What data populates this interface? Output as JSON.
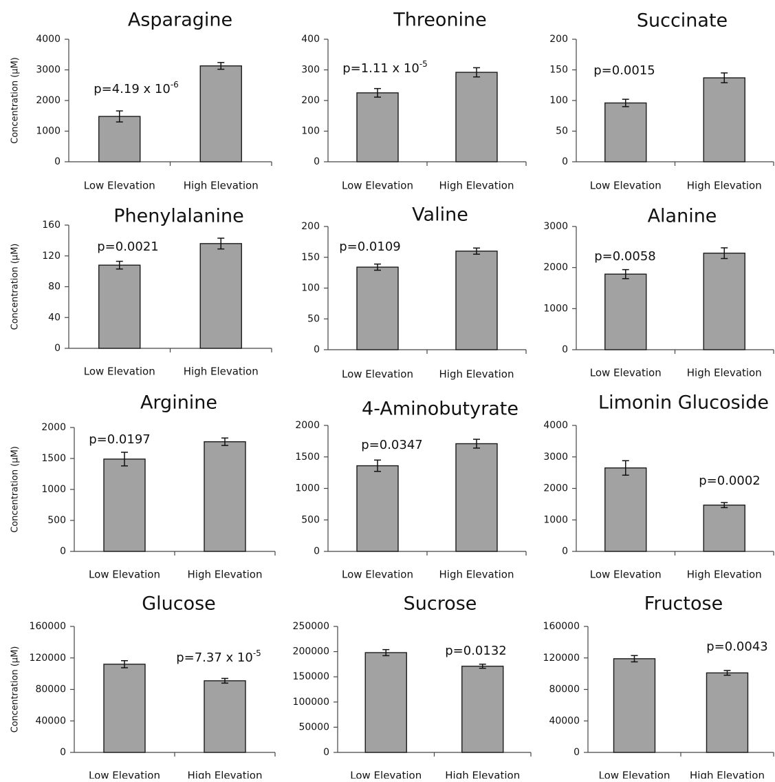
{
  "chart_data": [
    {
      "type": "bar",
      "title": "Asparagine",
      "ylabel": "Concentration (µM)",
      "categories": [
        "Low Elevation",
        "High Elevation"
      ],
      "values": [
        1480,
        3130
      ],
      "errors": [
        180,
        110
      ],
      "ylim": [
        0,
        4000
      ],
      "yticks": [
        "0",
        "1000",
        "2000",
        "3000",
        "4000"
      ],
      "pvalue": {
        "text": "p=4.19 x 10",
        "sup": "-6"
      }
    },
    {
      "type": "bar",
      "title": "Threonine",
      "ylabel": "",
      "categories": [
        "Low Elevation",
        "High Elevation"
      ],
      "values": [
        225,
        292
      ],
      "errors": [
        14,
        15
      ],
      "ylim": [
        0,
        400
      ],
      "yticks": [
        "0",
        "100",
        "200",
        "300",
        "400"
      ],
      "pvalue": {
        "text": "p=1.11 x 10",
        "sup": "-5"
      }
    },
    {
      "type": "bar",
      "title": "Succinate",
      "ylabel": "",
      "categories": [
        "Low Elevation",
        "High Elevation"
      ],
      "values": [
        96,
        137
      ],
      "errors": [
        6,
        8
      ],
      "ylim": [
        0,
        200
      ],
      "yticks": [
        "0",
        "50",
        "100",
        "150",
        "200"
      ],
      "pvalue": {
        "text": "p=0.0015",
        "sup": ""
      }
    },
    {
      "type": "bar",
      "title": "Phenylalanine",
      "ylabel": "Concentration (µM)",
      "categories": [
        "Low Elevation",
        "High Elevation"
      ],
      "values": [
        108,
        136
      ],
      "errors": [
        5,
        7
      ],
      "ylim": [
        0,
        160
      ],
      "yticks": [
        "0",
        "40",
        "80",
        "120",
        "160"
      ],
      "pvalue": {
        "text": "p=0.0021",
        "sup": ""
      }
    },
    {
      "type": "bar",
      "title": "Valine",
      "ylabel": "",
      "categories": [
        "Low Elevation",
        "High Elevation"
      ],
      "values": [
        134,
        160
      ],
      "errors": [
        5,
        5
      ],
      "ylim": [
        0,
        200
      ],
      "yticks": [
        "0",
        "50",
        "100",
        "150",
        "200"
      ],
      "pvalue": {
        "text": "p=0.0109",
        "sup": ""
      }
    },
    {
      "type": "bar",
      "title": "Alanine",
      "ylabel": "",
      "categories": [
        "Low Elevation",
        "High Elevation"
      ],
      "values": [
        1840,
        2350
      ],
      "errors": [
        110,
        130
      ],
      "ylim": [
        0,
        3000
      ],
      "yticks": [
        "0",
        "1000",
        "2000",
        "3000"
      ],
      "pvalue": {
        "text": "p=0.0058",
        "sup": ""
      }
    },
    {
      "type": "bar",
      "title": "Arginine",
      "ylabel": "Concentration (µM)",
      "categories": [
        "Low Elevation",
        "High Elevation"
      ],
      "values": [
        1490,
        1770
      ],
      "errors": [
        110,
        60
      ],
      "ylim": [
        0,
        2000
      ],
      "yticks": [
        "0",
        "500",
        "1000",
        "1500",
        "2000"
      ],
      "pvalue": {
        "text": "p=0.0197",
        "sup": ""
      }
    },
    {
      "type": "bar",
      "title": "4-Aminobutyrate",
      "ylabel": "",
      "categories": [
        "Low Elevation",
        "High Elevation"
      ],
      "values": [
        1360,
        1710
      ],
      "errors": [
        90,
        70
      ],
      "ylim": [
        0,
        2000
      ],
      "yticks": [
        "0",
        "500",
        "1000",
        "1500",
        "2000"
      ],
      "pvalue": {
        "text": "p=0.0347",
        "sup": ""
      }
    },
    {
      "type": "bar",
      "title": "Limonin Glucoside",
      "ylabel": "",
      "categories": [
        "Low Elevation",
        "High Elevation"
      ],
      "values": [
        2650,
        1470
      ],
      "errors": [
        230,
        80
      ],
      "ylim": [
        0,
        4000
      ],
      "yticks": [
        "0",
        "1000",
        "2000",
        "3000",
        "4000"
      ],
      "pvalue": {
        "text": "p=0.0002",
        "sup": ""
      }
    },
    {
      "type": "bar",
      "title": "Glucose",
      "ylabel": "Concentration (µM)",
      "categories": [
        "Low Elevation",
        "High Elevation"
      ],
      "values": [
        112000,
        91000
      ],
      "errors": [
        4500,
        3000
      ],
      "ylim": [
        0,
        160000
      ],
      "yticks": [
        "0",
        "40000",
        "80000",
        "120000",
        "160000"
      ],
      "pvalue": {
        "text": "p=7.37 x 10",
        "sup": "-5"
      }
    },
    {
      "type": "bar",
      "title": "Sucrose",
      "ylabel": "",
      "categories": [
        "Low Elevation",
        "High Elevation"
      ],
      "values": [
        198000,
        171000
      ],
      "errors": [
        6000,
        4000
      ],
      "ylim": [
        0,
        250000
      ],
      "yticks": [
        "0",
        "50000",
        "100000",
        "150000",
        "200000",
        "250000"
      ],
      "pvalue": {
        "text": "p=0.0132",
        "sup": ""
      }
    },
    {
      "type": "bar",
      "title": "Fructose",
      "ylabel": "",
      "categories": [
        "Low Elevation",
        "High Elevation"
      ],
      "values": [
        119000,
        101000
      ],
      "errors": [
        4000,
        3000
      ],
      "ylim": [
        0,
        160000
      ],
      "yticks": [
        "0",
        "40000",
        "80000",
        "120000",
        "160000"
      ],
      "pvalue": {
        "text": "p=0.0043",
        "sup": ""
      }
    }
  ]
}
